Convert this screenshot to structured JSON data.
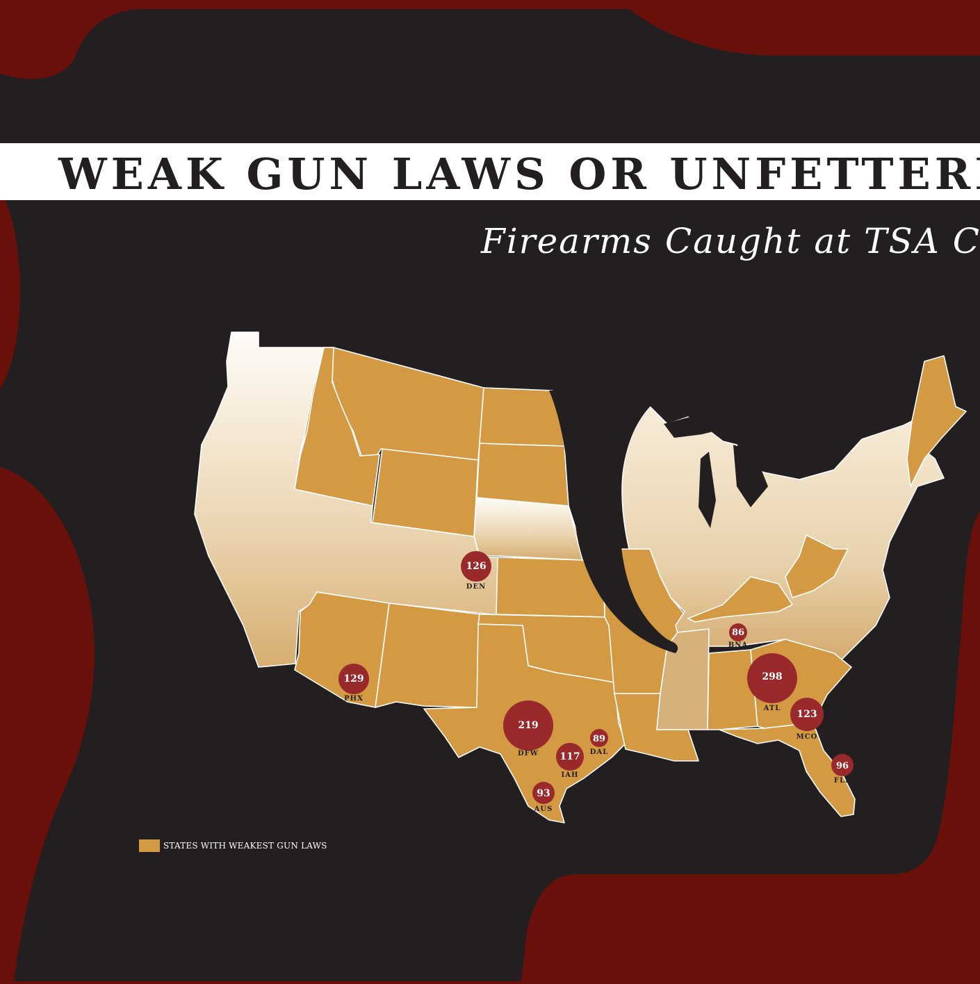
{
  "header": {
    "title": "WEAK GUN LAWS OR UNFETTERED",
    "subtitle": "Firearms Caught at TSA Ch"
  },
  "legend": {
    "label": "STATES WITH WEAKEST GUN LAWS",
    "color": "#d49a43"
  },
  "colors": {
    "background_red": "#6a100a",
    "panel_dark": "#231f20",
    "weak_state_gold": "#d49a43",
    "bubble_red": "#99292b",
    "title_band": "#ffffff"
  },
  "airports": [
    {
      "code": "DEN",
      "value": "126"
    },
    {
      "code": "PHX",
      "value": "129"
    },
    {
      "code": "DFW",
      "value": "219"
    },
    {
      "code": "DAL",
      "value": "89"
    },
    {
      "code": "IAH",
      "value": "117"
    },
    {
      "code": "AUS",
      "value": "93"
    },
    {
      "code": "BNA",
      "value": "86"
    },
    {
      "code": "ATL",
      "value": "298"
    },
    {
      "code": "MCO",
      "value": "123"
    },
    {
      "code": "FLL",
      "value": "96"
    }
  ]
}
